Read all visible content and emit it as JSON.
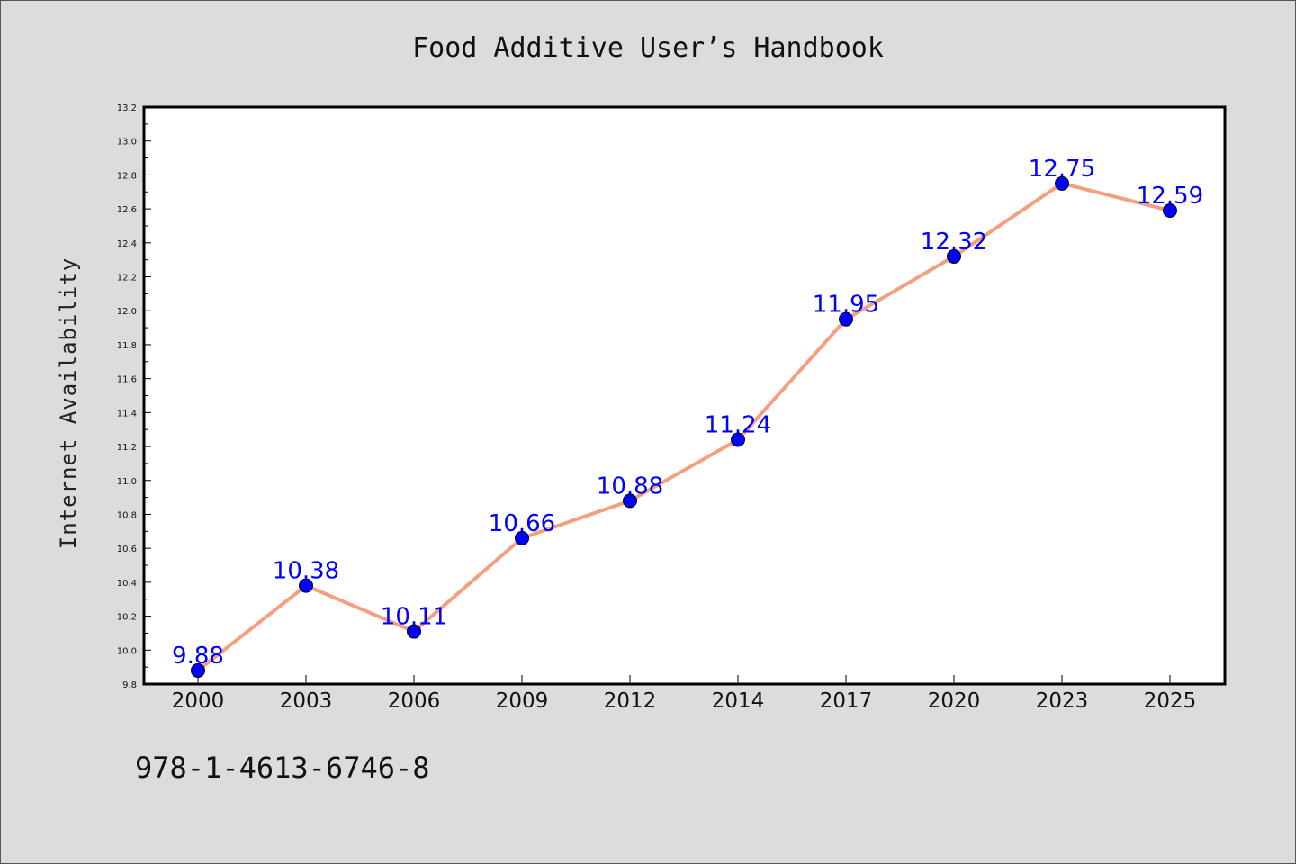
{
  "page": {
    "title": "Food Additive User’s Handbook",
    "footer_code": "978-1-4613-6746-8"
  },
  "chart_data": {
    "type": "line",
    "title": "Food Additive User’s Handbook",
    "xlabel": "",
    "ylabel": "Internet Availability",
    "categories": [
      "2000",
      "2003",
      "2006",
      "2009",
      "2012",
      "2014",
      "2017",
      "2020",
      "2023",
      "2025"
    ],
    "series": [
      {
        "values": [
          9.88,
          10.38,
          10.11,
          10.66,
          10.88,
          11.24,
          11.95,
          12.32,
          12.75,
          12.59
        ],
        "labels": [
          "9.88",
          "10.38",
          "10.11",
          "10.66",
          "10.88",
          "11.24",
          "11.95",
          "12.32",
          "12.75",
          "12.59"
        ],
        "line_color": "#f4a07f",
        "marker_color": "#0000ff"
      }
    ],
    "ylim": [
      9.8,
      13.2
    ],
    "y_ticks": [
      "9.8",
      "10.0",
      "10.2",
      "10.4",
      "10.6",
      "10.8",
      "11.0",
      "11.2",
      "11.4",
      "11.6",
      "11.8",
      "12.0",
      "12.2",
      "12.4",
      "12.6",
      "12.8",
      "13.0",
      "13.2"
    ],
    "grid": false,
    "legend": "none",
    "colors": {
      "plot_background": "#ffffff",
      "page_background": "#dcdcdc"
    }
  }
}
